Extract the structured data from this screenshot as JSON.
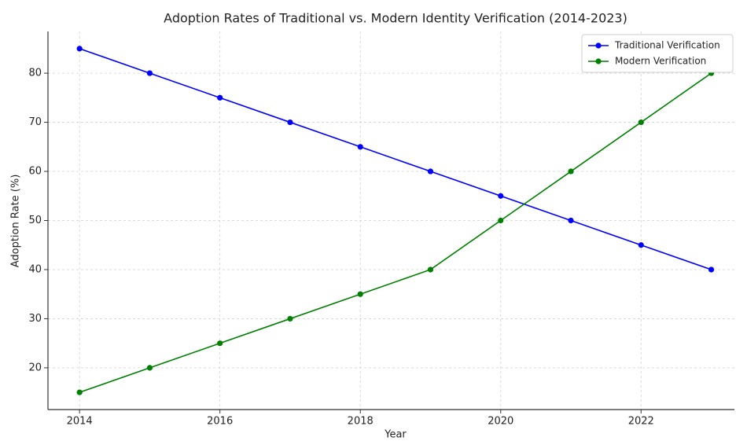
{
  "chart_data": {
    "type": "line",
    "title": "Adoption Rates of Traditional vs. Modern Identity Verification (2014-2023)",
    "x_label": "Year",
    "y_label": "Adoption Rate (%)",
    "x": [
      2014,
      2015,
      2016,
      2017,
      2018,
      2019,
      2020,
      2021,
      2022,
      2023
    ],
    "series": [
      {
        "name": "Traditional Verification",
        "color": "#0000ff",
        "values": [
          85,
          80,
          75,
          70,
          65,
          60,
          55,
          50,
          45,
          40
        ]
      },
      {
        "name": "Modern Verification",
        "color": "#008000",
        "values": [
          15,
          20,
          25,
          30,
          35,
          40,
          50,
          60,
          70,
          80
        ]
      }
    ],
    "xlim": [
      2013.55,
      2023.33
    ],
    "xticks": [
      2014,
      2016,
      2018,
      2020,
      2022
    ],
    "ylim": [
      11.5,
      88.5
    ],
    "yticks": [
      20,
      30,
      40,
      50,
      60,
      70,
      80
    ],
    "grid": true,
    "legend": "upper right"
  }
}
